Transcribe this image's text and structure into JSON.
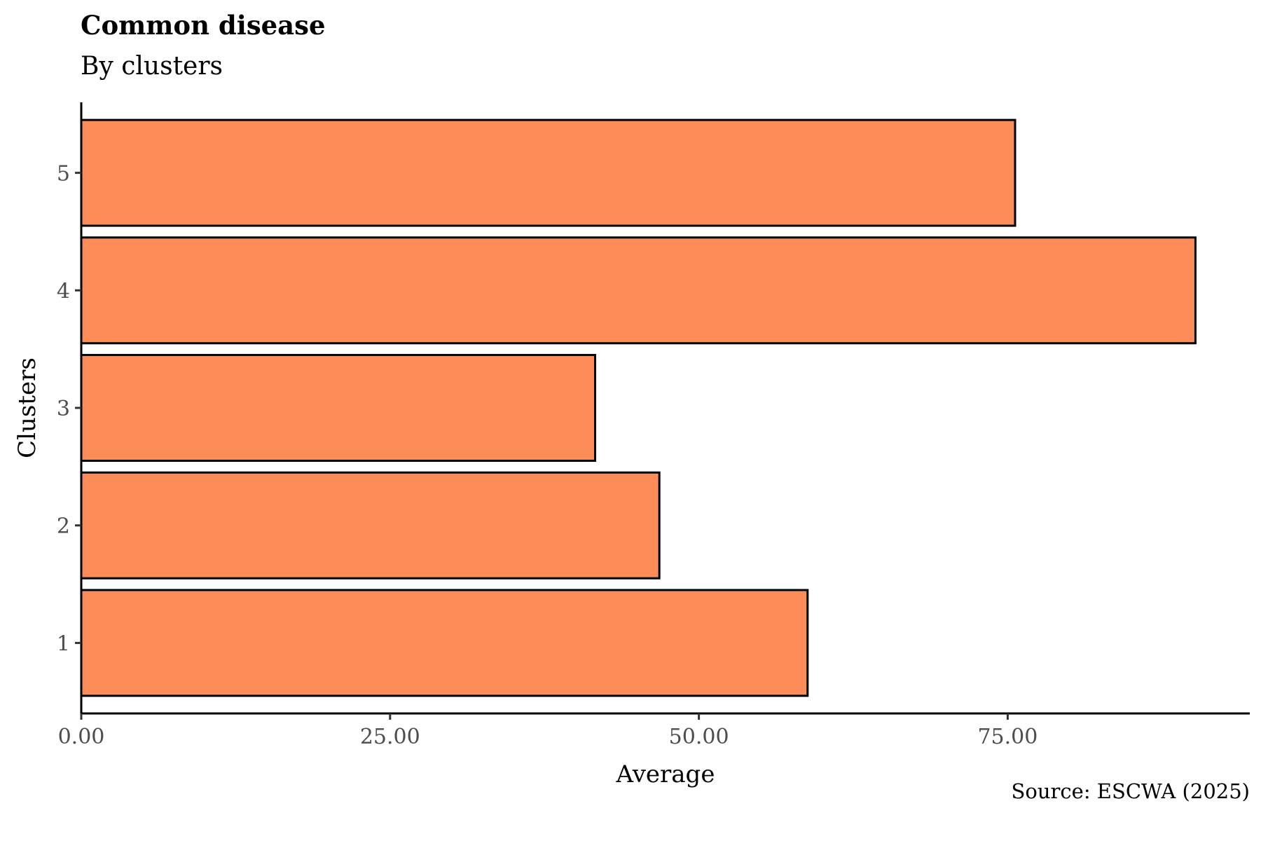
{
  "chart_data": {
    "type": "bar",
    "orientation": "horizontal",
    "title": "Common disease",
    "subtitle": "By clusters",
    "xlabel": "Average",
    "ylabel": "Clusters",
    "caption": "Source: ESCWA (2025)",
    "categories": [
      "1",
      "2",
      "3",
      "4",
      "5"
    ],
    "values": [
      58.8,
      46.8,
      41.6,
      90.2,
      75.6
    ],
    "xlim": [
      0,
      94.6
    ],
    "xticks": [
      0,
      25,
      50,
      75
    ],
    "xtick_labels": [
      "0.00",
      "25.00",
      "50.00",
      "75.00"
    ],
    "bar_color": "#FC8D59",
    "bar_edge_color": "#000000",
    "grid": false,
    "legend": "none"
  }
}
